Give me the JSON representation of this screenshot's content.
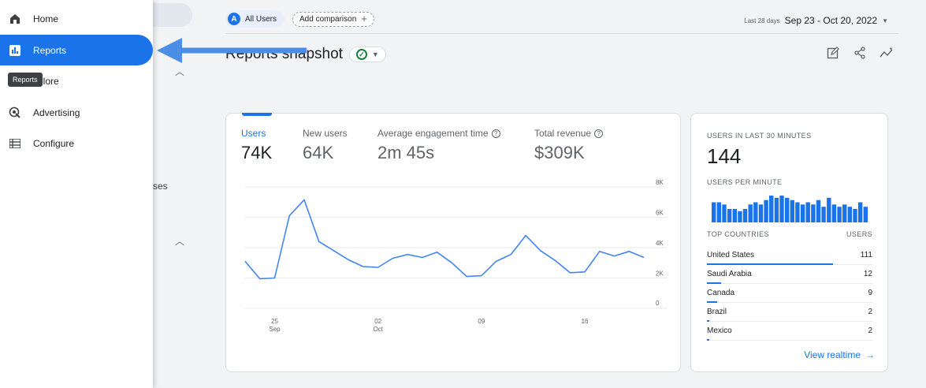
{
  "sidebar": {
    "items": [
      {
        "label": "Home",
        "icon": "home-icon"
      },
      {
        "label": "Reports",
        "icon": "reports-icon",
        "active": true
      },
      {
        "label": "plore",
        "icon": "explore-icon"
      },
      {
        "label": "Advertising",
        "icon": "advertising-icon"
      },
      {
        "label": "Configure",
        "icon": "configure-icon"
      }
    ],
    "tooltip": "Reports"
  },
  "behind": {
    "partial_text": "ses"
  },
  "header": {
    "segment_letter": "A",
    "segment_label": "All Users",
    "add_comparison": "Add comparison",
    "date_prefix": "Last 28 days",
    "date_range": "Sep 23 - Oct 20, 2022"
  },
  "page": {
    "title": "Reports snapshot"
  },
  "metrics": [
    {
      "label": "Users",
      "value": "74K"
    },
    {
      "label": "New users",
      "value": "64K"
    },
    {
      "label": "Average engagement time",
      "value": "2m 45s"
    },
    {
      "label": "Total revenue",
      "value": "$309K"
    }
  ],
  "chart_data": {
    "type": "line",
    "series": [
      {
        "values": [
          3100,
          1950,
          2000,
          6100,
          7150,
          4400,
          3800,
          3200,
          2750,
          2700,
          3300,
          3550,
          3350,
          3700,
          3000,
          2100,
          2150,
          3100,
          3550,
          4800,
          3800,
          3150,
          2350,
          2400,
          3750,
          3450,
          3750,
          3350
        ]
      }
    ],
    "x_tick_labels": [
      {
        "day": "25",
        "month": "Sep",
        "index": 2
      },
      {
        "day": "02",
        "month": "Oct",
        "index": 9
      },
      {
        "day": "09",
        "month": "",
        "index": 16
      },
      {
        "day": "16",
        "month": "",
        "index": 23
      }
    ],
    "y_ticks": [
      "8K",
      "6K",
      "4K",
      "2K",
      "0"
    ],
    "y_tick_values": [
      8000,
      6000,
      4000,
      2000,
      0
    ],
    "ylim": [
      0,
      8000
    ],
    "grid": true,
    "color": "#4285f4"
  },
  "realtime": {
    "title": "USERS IN LAST 30 MINUTES",
    "value": "144",
    "per_minute_label": "USERS PER MINUTE",
    "per_minute": [
      9,
      9,
      8,
      6,
      6,
      5,
      6,
      8,
      9,
      8,
      10,
      12,
      11,
      12,
      11,
      10,
      9,
      8,
      9,
      8,
      10,
      7,
      11,
      8,
      7,
      8,
      7,
      6,
      9,
      7
    ],
    "countries_header": "TOP COUNTRIES",
    "users_header": "USERS",
    "countries": [
      {
        "name": "United States",
        "users": "111",
        "share": 1.0
      },
      {
        "name": "Saudi Arabia",
        "users": "12",
        "share": 0.11
      },
      {
        "name": "Canada",
        "users": "9",
        "share": 0.08
      },
      {
        "name": "Brazil",
        "users": "2",
        "share": 0.02
      },
      {
        "name": "Mexico",
        "users": "2",
        "share": 0.02
      }
    ],
    "view_link": "View realtime"
  },
  "colors": {
    "accent": "#1a73e8",
    "line": "#4285f4",
    "success": "#188038"
  }
}
